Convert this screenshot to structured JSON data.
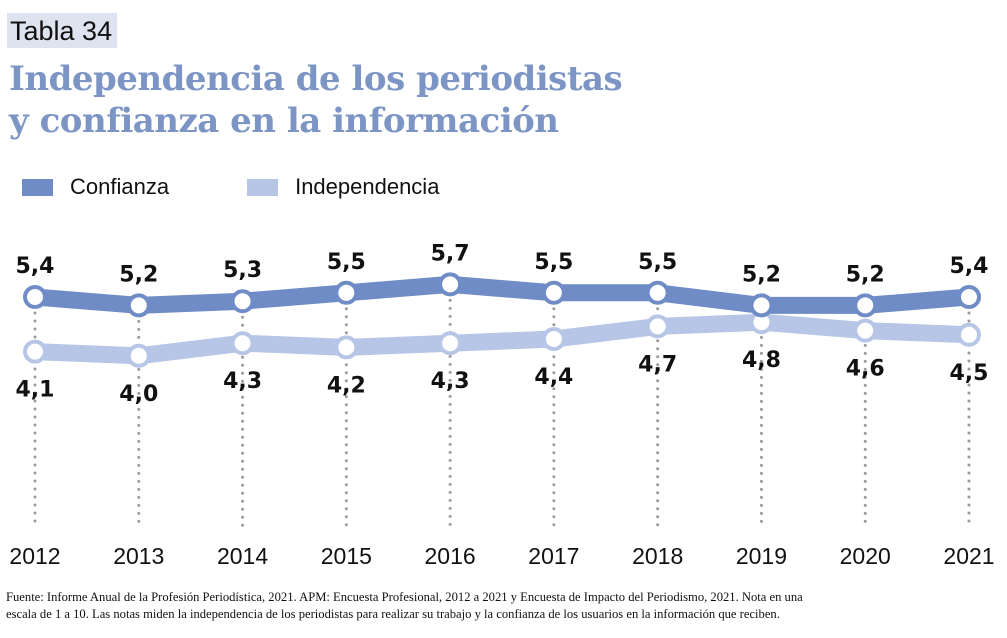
{
  "header": {
    "tag": "Tabla 34",
    "title_line1": "Independencia de los periodistas",
    "title_line2": "y confianza en la información"
  },
  "footer": {
    "line1": "Fuente: Informe Anual de la Profesión Periodística, 2021. APM: Encuesta Profesional, 2012 a 2021 y Encuesta de Impacto del Periodismo, 2021. Nota en una",
    "line2": "escala de 1 a 10. Las notas miden la independencia de los periodistas para realizar su trabajo y la confianza de los usuarios en la información que reciben."
  },
  "chart_data": {
    "type": "line",
    "title": "Independencia de los periodistas y confianza en la información",
    "xlabel": "",
    "ylabel": "",
    "categories": [
      "2012",
      "2013",
      "2014",
      "2015",
      "2016",
      "2017",
      "2018",
      "2019",
      "2020",
      "2021"
    ],
    "series": [
      {
        "name": "Confianza",
        "color": "#6f8cc6",
        "values": [
          5.4,
          5.2,
          5.3,
          5.5,
          5.7,
          5.5,
          5.5,
          5.2,
          5.2,
          5.4
        ],
        "labels": [
          "5,4",
          "5,2",
          "5,3",
          "5,5",
          "5,7",
          "5,5",
          "5,5",
          "5,2",
          "5,2",
          "5,4"
        ]
      },
      {
        "name": "Independencia",
        "color": "#b7c5e6",
        "values": [
          4.1,
          4.0,
          4.3,
          4.2,
          4.3,
          4.4,
          4.7,
          4.8,
          4.6,
          4.5
        ],
        "labels": [
          "4,1",
          "4,0",
          "4,3",
          "4,2",
          "4,3",
          "4,4",
          "4,7",
          "4,8",
          "4,6",
          "4,5"
        ]
      }
    ],
    "scale": "1 a 10",
    "grid": false,
    "legend_position": "top-left"
  }
}
